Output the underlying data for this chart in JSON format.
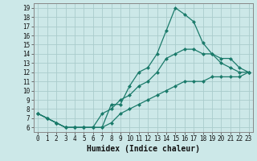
{
  "xlabel": "Humidex (Indice chaleur)",
  "bg_color": "#cce8e8",
  "grid_color": "#aacccc",
  "line_color": "#1a7a6a",
  "spine_color": "#888888",
  "xlim": [
    -0.5,
    23.5
  ],
  "ylim": [
    5.5,
    19.5
  ],
  "xticks": [
    0,
    1,
    2,
    3,
    4,
    5,
    6,
    7,
    8,
    9,
    10,
    11,
    12,
    13,
    14,
    15,
    16,
    17,
    18,
    19,
    20,
    21,
    22,
    23
  ],
  "yticks": [
    6,
    7,
    8,
    9,
    10,
    11,
    12,
    13,
    14,
    15,
    16,
    17,
    18,
    19
  ],
  "line1_x": [
    0,
    1,
    2,
    3,
    4,
    5,
    6,
    7,
    8,
    9,
    10,
    11,
    12,
    13,
    14,
    15,
    16,
    17,
    18,
    19,
    20,
    21,
    22,
    23
  ],
  "line1_y": [
    7.5,
    7.0,
    6.5,
    6.0,
    6.0,
    6.0,
    6.0,
    6.0,
    8.5,
    8.5,
    10.5,
    12.0,
    12.5,
    14.0,
    16.5,
    19.0,
    18.3,
    17.5,
    15.2,
    14.0,
    13.0,
    12.5,
    12.0,
    12.0
  ],
  "line2_x": [
    0,
    1,
    2,
    3,
    4,
    5,
    6,
    7,
    8,
    9,
    10,
    11,
    12,
    13,
    14,
    15,
    16,
    17,
    18,
    19,
    20,
    21,
    22,
    23
  ],
  "line2_y": [
    7.5,
    7.0,
    6.5,
    6.0,
    6.0,
    6.0,
    6.0,
    7.5,
    8.0,
    9.0,
    9.5,
    10.5,
    11.0,
    12.0,
    13.5,
    14.0,
    14.5,
    14.5,
    14.0,
    14.0,
    13.5,
    13.5,
    12.5,
    12.0
  ],
  "line3_x": [
    0,
    1,
    2,
    3,
    4,
    5,
    6,
    7,
    8,
    9,
    10,
    11,
    12,
    13,
    14,
    15,
    16,
    17,
    18,
    19,
    20,
    21,
    22,
    23
  ],
  "line3_y": [
    7.5,
    7.0,
    6.5,
    6.0,
    6.0,
    6.0,
    6.0,
    6.0,
    6.5,
    7.5,
    8.0,
    8.5,
    9.0,
    9.5,
    10.0,
    10.5,
    11.0,
    11.0,
    11.0,
    11.5,
    11.5,
    11.5,
    11.5,
    12.0
  ],
  "tick_fontsize": 5.5,
  "xlabel_fontsize": 7,
  "marker_size": 2.5,
  "line_width": 0.9
}
